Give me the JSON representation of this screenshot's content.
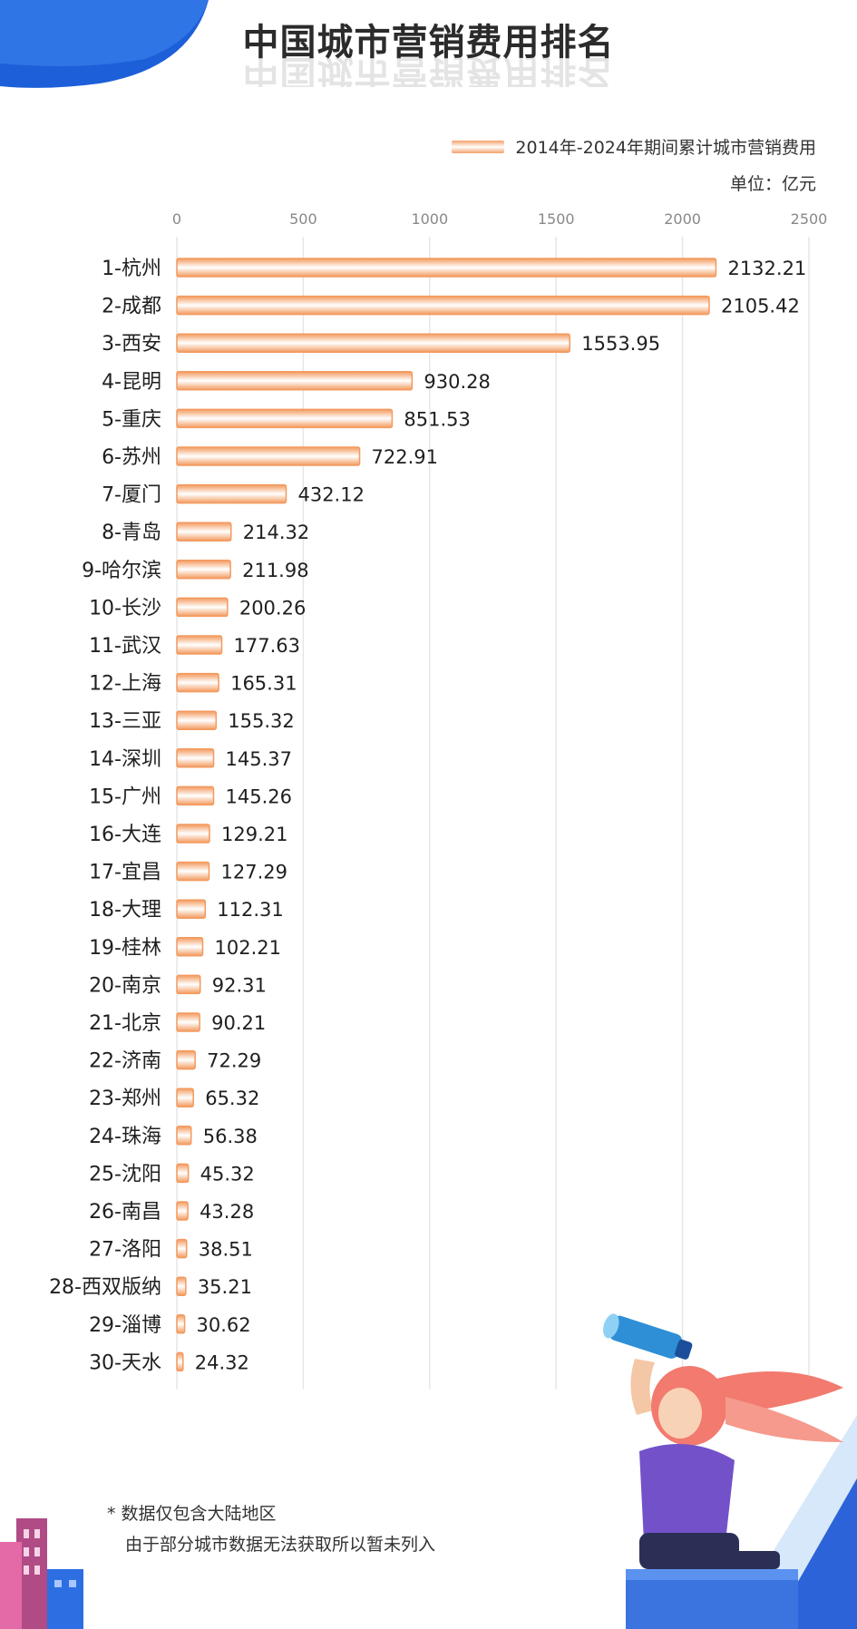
{
  "title": "中国城市营销费用排名",
  "legend_label": "2014年-2024年期间累计城市营销费用",
  "unit_label": "单位：亿元",
  "footnotes": [
    "* 数据仅包含大陆地区",
    "由于部分城市数据无法获取所以暂未列入"
  ],
  "colors": {
    "bar": "#f39a5e",
    "bar_light": "#ffffff",
    "corner": "#1d5fd8",
    "grid": "#e6e6e6"
  },
  "chart_data": {
    "type": "bar",
    "orientation": "horizontal",
    "title": "中国城市营销费用排名",
    "xlabel": "",
    "ylabel": "",
    "xlim": [
      0,
      2500
    ],
    "xticks": [
      0,
      500,
      1000,
      1500,
      2000,
      2500
    ],
    "legend_position": "top-right",
    "series": [
      {
        "name": "2014年-2024年期间累计城市营销费用"
      }
    ],
    "categories": [
      "1-杭州",
      "2-成都",
      "3-西安",
      "4-昆明",
      "5-重庆",
      "6-苏州",
      "7-厦门",
      "8-青岛",
      "9-哈尔滨",
      "10-长沙",
      "11-武汉",
      "12-上海",
      "13-三亚",
      "14-深圳",
      "15-广州",
      "16-大连",
      "17-宜昌",
      "18-大理",
      "19-桂林",
      "20-南京",
      "21-北京",
      "22-济南",
      "23-郑州",
      "24-珠海",
      "25-沈阳",
      "26-南昌",
      "27-洛阳",
      "28-西双版纳",
      "29-淄博",
      "30-天水"
    ],
    "values": [
      2132.21,
      2105.42,
      1553.95,
      930.28,
      851.53,
      722.91,
      432.12,
      214.32,
      211.98,
      200.26,
      177.63,
      165.31,
      155.32,
      145.37,
      145.26,
      129.21,
      127.29,
      112.31,
      102.21,
      92.31,
      90.21,
      72.29,
      65.32,
      56.38,
      45.32,
      43.28,
      38.51,
      35.21,
      30.62,
      24.32
    ],
    "value_labels": [
      "2132.21",
      "2105.42",
      "1553.95",
      "930.28",
      "851.53",
      "722.91",
      "432.12",
      "214.32",
      "211.98",
      "200.26",
      "177.63",
      "165.31",
      "155.32",
      "145.37",
      "145.26",
      "129.21",
      "127.29",
      "112.31",
      "102.21",
      "92.31",
      "90.21",
      "72.29",
      "65.32",
      "56.38",
      "45.32",
      "43.28",
      "38.51",
      "35.21",
      "30.62",
      "24.32"
    ]
  }
}
